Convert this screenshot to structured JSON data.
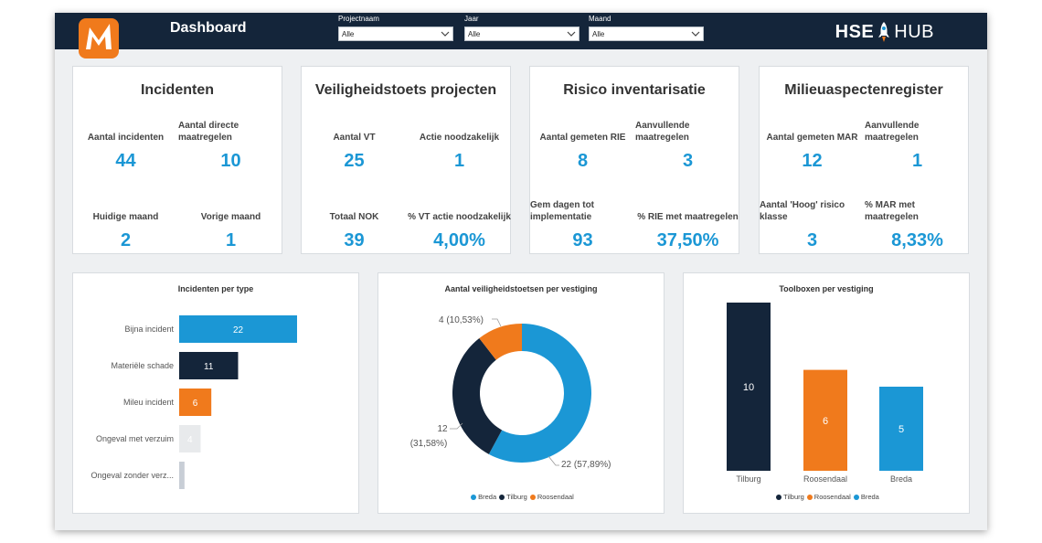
{
  "header": {
    "title": "Dashboard",
    "brand_left": "HSE",
    "brand_right": "HUB",
    "filters": [
      {
        "label": "Projectnaam",
        "value": "Alle"
      },
      {
        "label": "Jaar",
        "value": "Alle"
      },
      {
        "label": "Maand",
        "value": "Alle"
      }
    ]
  },
  "colors": {
    "accent": "#1b97d5",
    "navy": "#14253a",
    "orange": "#f07a1c",
    "header_bg": "#14253a"
  },
  "kpis": [
    {
      "title": "Incidenten",
      "cells": [
        {
          "label": "Aantal incidenten",
          "value": "44"
        },
        {
          "label": "Aantal directe maatregelen",
          "value": "10"
        },
        {
          "label": "Huidige maand",
          "value": "2"
        },
        {
          "label": "Vorige maand",
          "value": "1"
        }
      ]
    },
    {
      "title": "Veiligheidstoets projecten",
      "cells": [
        {
          "label": "Aantal VT",
          "value": "25"
        },
        {
          "label": "Actie noodzakelijk",
          "value": "1"
        },
        {
          "label": "Totaal NOK",
          "value": "39"
        },
        {
          "label": "% VT actie noodzakelijk",
          "value": "4,00%"
        }
      ]
    },
    {
      "title": "Risico inventarisatie",
      "cells": [
        {
          "label": "Aantal gemeten RIE",
          "value": "8"
        },
        {
          "label": "Aanvullende maatregelen",
          "value": "3"
        },
        {
          "label": "Gem dagen tot implementatie",
          "value": "93"
        },
        {
          "label": "% RIE met maatregelen",
          "value": "37,50%"
        }
      ]
    },
    {
      "title": "Milieuaspectenregister",
      "cells": [
        {
          "label": "Aantal gemeten MAR",
          "value": "12"
        },
        {
          "label": "Aanvullende maatregelen",
          "value": "1"
        },
        {
          "label": "Aantal 'Hoog' risico klasse",
          "value": "3"
        },
        {
          "label": "% MAR met maatregelen",
          "value": "8,33%"
        }
      ]
    }
  ],
  "chart_data": [
    {
      "type": "bar",
      "orientation": "horizontal",
      "title": "Incidenten per type",
      "categories": [
        "Bijna incident",
        "Materiële schade",
        "Mileu incident",
        "Ongeval met verzuim",
        "Ongeval zonder verz..."
      ],
      "values": [
        22,
        11,
        6,
        4,
        1
      ],
      "value_labels": [
        "22",
        "11",
        "6",
        "4",
        ""
      ],
      "colors": [
        "#1b97d5",
        "#14253a",
        "#f07a1c",
        "#e8eaec",
        "#c8ced6"
      ]
    },
    {
      "type": "pie",
      "donut": true,
      "title": "Aantal veiligheidstoetsen per vestiging",
      "categories": [
        "Breda",
        "Tilburg",
        "Roosendaal"
      ],
      "values": [
        22,
        12,
        4
      ],
      "value_labels": [
        "22 (57,89%)",
        "12",
        "4 (10,53%)"
      ],
      "secondary_label": "(31,58%)",
      "colors": [
        "#1b97d5",
        "#14253a",
        "#f07a1c"
      ],
      "legend": "bottom"
    },
    {
      "type": "bar",
      "title": "Toolboxen per vestiging",
      "categories": [
        "Tilburg",
        "Roosendaal",
        "Breda"
      ],
      "values": [
        10,
        6,
        5
      ],
      "colors": [
        "#14253a",
        "#f07a1c",
        "#1b97d5"
      ],
      "ylim": [
        0,
        10
      ],
      "legend": "bottom"
    }
  ]
}
